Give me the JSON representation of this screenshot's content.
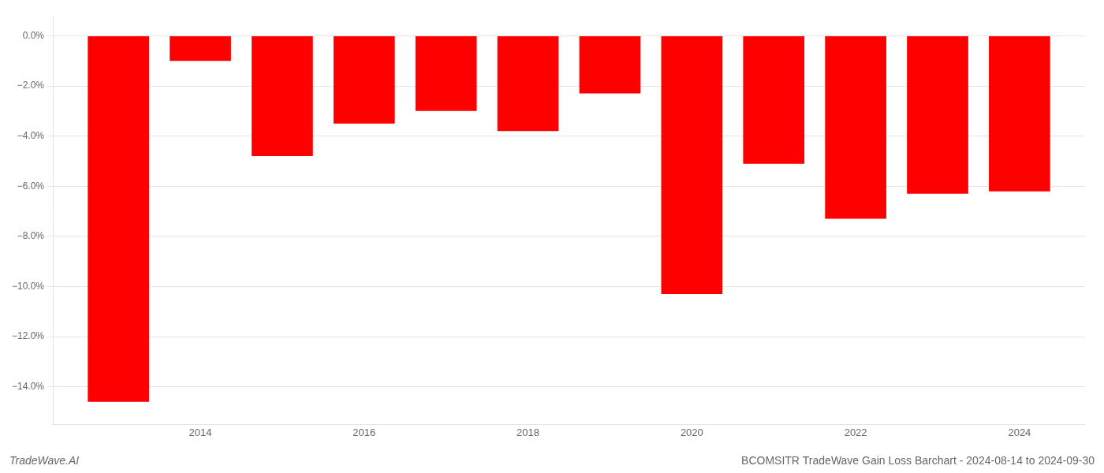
{
  "chart_data": {
    "type": "bar",
    "title": "BCOMSITR TradeWave Gain Loss Barchart - 2024-08-14 to 2024-09-30",
    "annotations": [
      "TradeWave.AI"
    ],
    "x": [
      2013,
      2014,
      2015,
      2016,
      2017,
      2018,
      2019,
      2020,
      2021,
      2022,
      2023,
      2024
    ],
    "values": [
      -14.6,
      -1.0,
      -4.8,
      -3.5,
      -3.0,
      -3.8,
      -2.3,
      -10.3,
      -5.1,
      -7.3,
      -6.3,
      -6.2
    ],
    "color": "#ff0000",
    "xlim": [
      2012.2,
      2024.8
    ],
    "xticks": [
      2014,
      2016,
      2018,
      2020,
      2022,
      2024
    ],
    "ylim": [
      -15.5,
      0.8
    ],
    "yticks": [
      {
        "value": 0.0,
        "label": "0.0%"
      },
      {
        "value": -2.0,
        "label": "−2.0%"
      },
      {
        "value": -4.0,
        "label": "−4.0%"
      },
      {
        "value": -6.0,
        "label": "−6.0%"
      },
      {
        "value": -8.0,
        "label": "−8.0%"
      },
      {
        "value": -10.0,
        "label": "−10.0%"
      },
      {
        "value": -12.0,
        "label": "−12.0%"
      },
      {
        "value": -14.0,
        "label": "−14.0%"
      }
    ],
    "grid": true
  }
}
